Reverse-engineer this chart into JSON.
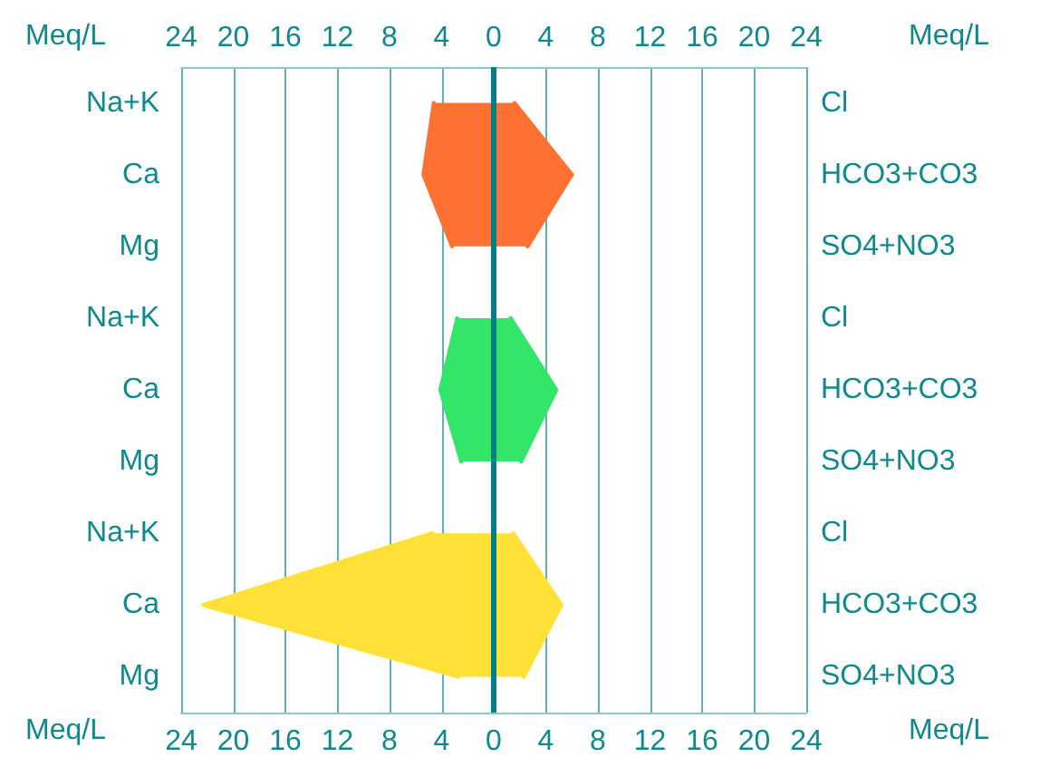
{
  "chart_data": {
    "type": "area",
    "orientation": "horizontal",
    "xlabel": "Meq/L",
    "x2label": "Meq/L",
    "categories": [
      "Na+K",
      "Ca",
      "Mg",
      "Na+K",
      "Ca",
      "Mg",
      "Na+K",
      "Ca",
      "Mg"
    ],
    "y2_categories": [
      "Cl",
      "HCO3+CO3",
      "SO4+NO3",
      "Cl",
      "HCO3+CO3",
      "SO4+NO3",
      "Cl",
      "HCO3+CO3",
      "SO4+NO3"
    ],
    "series": [
      {
        "color": "#ff7033",
        "values": [
          -4.6,
          -5.4,
          -3.2,
          null,
          null,
          null,
          null,
          null,
          null
        ]
      },
      {
        "color": "#ff7033",
        "values": [
          1.6,
          6.0,
          2.6,
          null,
          null,
          null,
          null,
          null,
          null
        ]
      },
      {
        "color": "#33e66a",
        "values": [
          null,
          null,
          null,
          -2.8,
          -4.1,
          -2.5,
          null,
          null,
          null
        ]
      },
      {
        "color": "#33e66a",
        "values": [
          null,
          null,
          null,
          1.3,
          4.8,
          2.1,
          null,
          null,
          null
        ]
      },
      {
        "color": "#ffe138",
        "values": [
          null,
          null,
          null,
          null,
          null,
          null,
          -4.7,
          -22.3,
          -2.7
        ]
      },
      {
        "color": "#ffe138",
        "values": [
          null,
          null,
          null,
          null,
          null,
          null,
          1.5,
          5.2,
          2.3
        ]
      }
    ],
    "xlim": [
      -24,
      24
    ],
    "xticks": [
      {
        "value": -24,
        "label": "24"
      },
      {
        "value": -20,
        "label": "20"
      },
      {
        "value": -16,
        "label": "16"
      },
      {
        "value": -12,
        "label": "12"
      },
      {
        "value": -8,
        "label": "8"
      },
      {
        "value": -4,
        "label": "4"
      },
      0,
      4,
      8,
      12,
      16,
      20,
      24
    ],
    "x2lim": [
      -24,
      24
    ],
    "x2ticks": [
      {
        "value": -24,
        "label": "24"
      },
      {
        "value": -20,
        "label": "20"
      },
      {
        "value": -16,
        "label": "16"
      },
      {
        "value": -12,
        "label": "12"
      },
      {
        "value": -8,
        "label": "8"
      },
      {
        "value": -4,
        "label": "4"
      },
      0,
      4,
      8,
      12,
      16,
      20,
      24
    ],
    "ref_lines": [
      {
        "axis": "x",
        "value": 0,
        "color": "#007f86"
      }
    ],
    "grid": "x",
    "marker": "none",
    "line_style": "solid"
  }
}
